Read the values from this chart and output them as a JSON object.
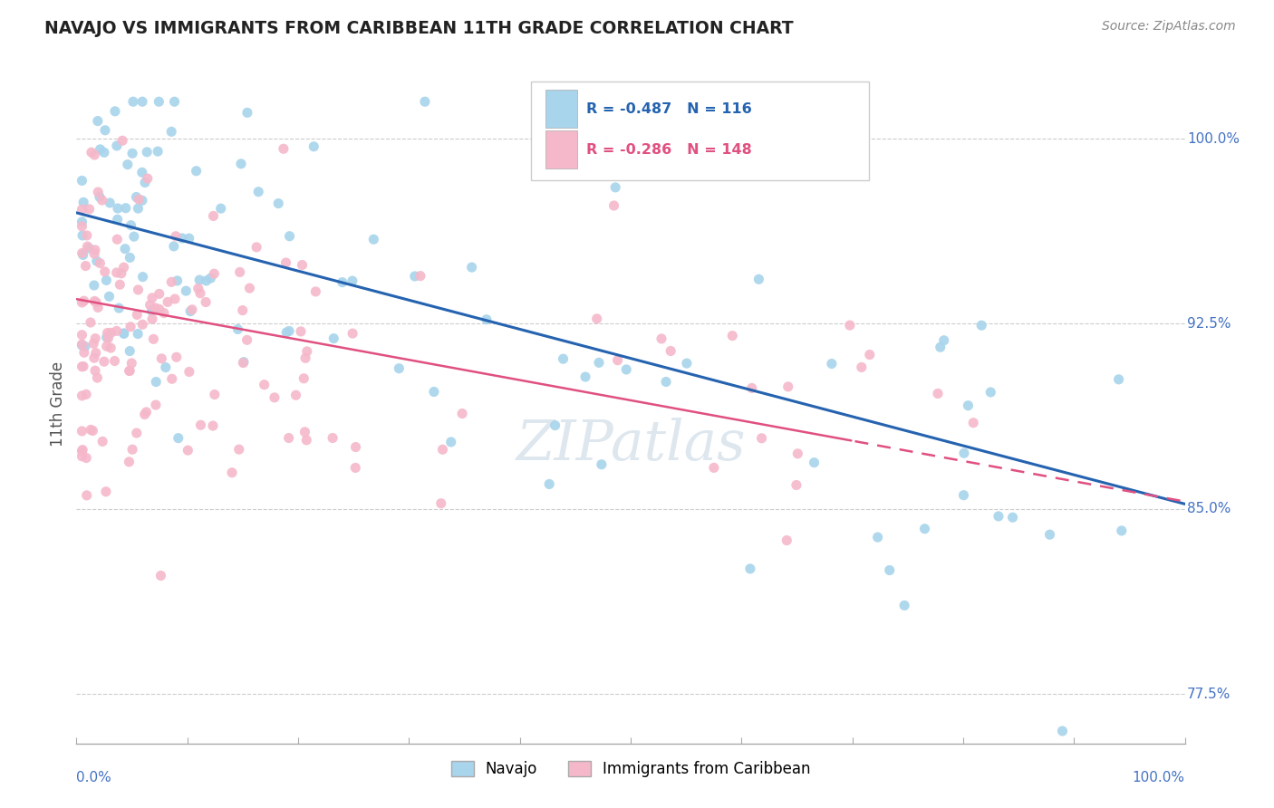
{
  "title": "NAVAJO VS IMMIGRANTS FROM CARIBBEAN 11TH GRADE CORRELATION CHART",
  "source": "Source: ZipAtlas.com",
  "ylabel": "11th Grade",
  "xlim": [
    0.0,
    100.0
  ],
  "ylim": [
    75.5,
    103.0
  ],
  "navajo_R": -0.487,
  "navajo_N": 116,
  "carib_R": -0.286,
  "carib_N": 148,
  "navajo_color": "#a8d4ec",
  "carib_color": "#f5b8ca",
  "navajo_line_color": "#2563b0",
  "carib_line_color": "#e05080",
  "axis_label_color": "#4472c4",
  "ytick_labeled": [
    77.5,
    85.0,
    92.5,
    100.0
  ],
  "navajo_intercept": 97.0,
  "navajo_slope": -0.118,
  "carib_intercept": 93.5,
  "carib_slope": -0.082
}
